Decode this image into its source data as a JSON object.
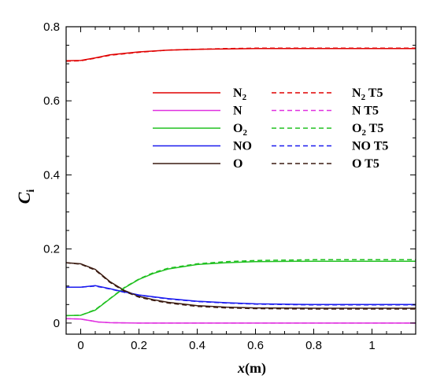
{
  "chart_data": {
    "type": "line",
    "xlabel": "x(m)",
    "ylabel": "Ci",
    "xlim": [
      -0.05,
      1.15
    ],
    "ylim": [
      -0.03,
      0.8
    ],
    "xticks": [
      0,
      0.2,
      0.4,
      0.6,
      0.8,
      1
    ],
    "xtick_labels": [
      "0",
      "0.2",
      "0.4",
      "0.6",
      "0.8",
      "1"
    ],
    "yticks": [
      0,
      0.2,
      0.4,
      0.6,
      0.8
    ],
    "ytick_labels": [
      "0",
      "0.2",
      "0.4",
      "0.6",
      "0.8"
    ],
    "grid": false,
    "legend_placement": "upper-middle",
    "series": [
      {
        "name": "N2",
        "color": "#e00000",
        "dash": "solid",
        "x": [
          -0.05,
          0.0,
          0.05,
          0.1,
          0.2,
          0.3,
          0.4,
          0.5,
          0.6,
          0.8,
          1.0,
          1.15
        ],
        "y": [
          0.708,
          0.709,
          0.716,
          0.724,
          0.732,
          0.737,
          0.739,
          0.74,
          0.741,
          0.741,
          0.741,
          0.741
        ]
      },
      {
        "name": "N",
        "color": "#e030e0",
        "dash": "solid",
        "x": [
          -0.05,
          0.0,
          0.03,
          0.06,
          0.1,
          0.2,
          0.4,
          0.6,
          0.8,
          1.0,
          1.15
        ],
        "y": [
          0.012,
          0.011,
          0.007,
          0.003,
          0.001,
          0.0,
          0.0,
          0.0,
          0.0,
          0.0,
          0.0
        ]
      },
      {
        "name": "O2",
        "color": "#20c020",
        "dash": "solid",
        "x": [
          -0.05,
          0.0,
          0.05,
          0.1,
          0.15,
          0.2,
          0.25,
          0.3,
          0.4,
          0.5,
          0.6,
          0.8,
          1.0,
          1.15
        ],
        "y": [
          0.02,
          0.021,
          0.035,
          0.065,
          0.095,
          0.118,
          0.134,
          0.146,
          0.158,
          0.163,
          0.166,
          0.167,
          0.167,
          0.167
        ]
      },
      {
        "name": "NO",
        "color": "#1a1aee",
        "dash": "solid",
        "x": [
          -0.05,
          0.0,
          0.05,
          0.1,
          0.15,
          0.2,
          0.3,
          0.4,
          0.5,
          0.6,
          0.8,
          1.0,
          1.15
        ],
        "y": [
          0.097,
          0.097,
          0.101,
          0.093,
          0.084,
          0.076,
          0.066,
          0.059,
          0.055,
          0.052,
          0.05,
          0.05,
          0.05
        ]
      },
      {
        "name": "O",
        "color": "#3a1a10",
        "dash": "solid",
        "x": [
          -0.05,
          0.0,
          0.05,
          0.1,
          0.15,
          0.2,
          0.25,
          0.3,
          0.4,
          0.5,
          0.6,
          0.8,
          1.0,
          1.15
        ],
        "y": [
          0.163,
          0.16,
          0.145,
          0.112,
          0.088,
          0.072,
          0.063,
          0.056,
          0.047,
          0.043,
          0.041,
          0.04,
          0.04,
          0.04
        ]
      },
      {
        "name": "N2 T5",
        "color": "#e00000",
        "dash": "dashed",
        "x": [
          -0.05,
          0.0,
          0.05,
          0.1,
          0.2,
          0.3,
          0.4,
          0.5,
          0.6,
          0.8,
          1.0,
          1.15
        ],
        "y": [
          0.707,
          0.708,
          0.715,
          0.723,
          0.731,
          0.737,
          0.739,
          0.741,
          0.742,
          0.742,
          0.742,
          0.742
        ]
      },
      {
        "name": "N T5",
        "color": "#e030e0",
        "dash": "dashed",
        "x": [
          -0.05,
          0.0,
          0.03,
          0.06,
          0.1,
          0.2,
          0.4,
          0.6,
          0.8,
          1.0,
          1.15
        ],
        "y": [
          0.012,
          0.011,
          0.007,
          0.003,
          0.001,
          0.0,
          0.0,
          0.0,
          0.0,
          0.0,
          0.0
        ]
      },
      {
        "name": "O2 T5",
        "color": "#20c020",
        "dash": "dashed",
        "x": [
          -0.05,
          0.0,
          0.05,
          0.1,
          0.15,
          0.2,
          0.25,
          0.3,
          0.4,
          0.5,
          0.6,
          0.8,
          1.0,
          1.15
        ],
        "y": [
          0.02,
          0.021,
          0.036,
          0.066,
          0.096,
          0.119,
          0.136,
          0.148,
          0.16,
          0.166,
          0.169,
          0.171,
          0.171,
          0.171
        ]
      },
      {
        "name": "NO T5",
        "color": "#1a1aee",
        "dash": "dashed",
        "x": [
          -0.05,
          0.0,
          0.05,
          0.1,
          0.15,
          0.2,
          0.3,
          0.4,
          0.5,
          0.6,
          0.8,
          1.0,
          1.15
        ],
        "y": [
          0.097,
          0.097,
          0.1,
          0.092,
          0.083,
          0.075,
          0.065,
          0.058,
          0.054,
          0.051,
          0.049,
          0.049,
          0.049
        ]
      },
      {
        "name": "O T5",
        "color": "#3a1a10",
        "dash": "dashed",
        "x": [
          -0.05,
          0.0,
          0.05,
          0.1,
          0.15,
          0.2,
          0.25,
          0.3,
          0.4,
          0.5,
          0.6,
          0.8,
          1.0,
          1.15
        ],
        "y": [
          0.163,
          0.159,
          0.143,
          0.11,
          0.086,
          0.07,
          0.061,
          0.054,
          0.045,
          0.041,
          0.039,
          0.038,
          0.038,
          0.038
        ]
      }
    ],
    "legend": {
      "solid": [
        {
          "label": "N",
          "sub": "2",
          "suffix": "",
          "color": "#e00000"
        },
        {
          "label": "N",
          "sub": "",
          "suffix": "",
          "color": "#e030e0"
        },
        {
          "label": "O",
          "sub": "2",
          "suffix": "",
          "color": "#20c020"
        },
        {
          "label": "NO",
          "sub": "",
          "suffix": "",
          "color": "#1a1aee"
        },
        {
          "label": "O",
          "sub": "",
          "suffix": "",
          "color": "#3a1a10"
        }
      ],
      "dashed": [
        {
          "label": "N",
          "sub": "2",
          "suffix": " T5",
          "color": "#e00000"
        },
        {
          "label": "N",
          "sub": "",
          "suffix": " T5",
          "color": "#e030e0"
        },
        {
          "label": "O",
          "sub": "2",
          "suffix": " T5",
          "color": "#20c020"
        },
        {
          "label": "NO",
          "sub": "",
          "suffix": " T5",
          "color": "#1a1aee"
        },
        {
          "label": "O",
          "sub": "",
          "suffix": " T5",
          "color": "#3a1a10"
        }
      ]
    }
  },
  "axes": {
    "ylabel_main": "C",
    "ylabel_sub": "i",
    "xlabel_var": "x",
    "xlabel_unit": "(m)"
  }
}
